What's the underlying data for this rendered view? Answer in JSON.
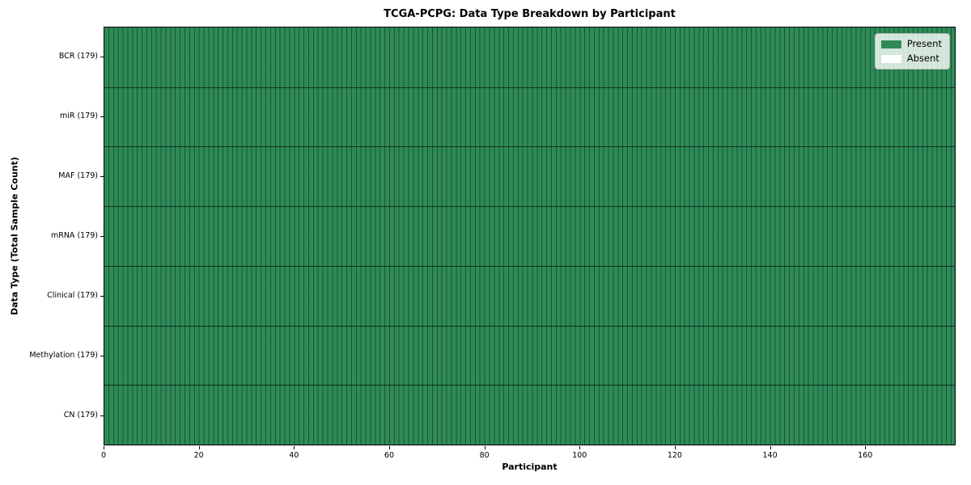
{
  "chart_data": {
    "type": "heatmap",
    "title": "TCGA-PCPG: Data Type Breakdown by Participant",
    "xlabel": "Participant",
    "ylabel": "Data Type (Total Sample Count)",
    "n_participants": 179,
    "xlim": [
      0,
      179
    ],
    "x_ticks": [
      0,
      20,
      40,
      60,
      80,
      100,
      120,
      140,
      160
    ],
    "categories": [
      "BCR (179)",
      "miR (179)",
      "MAF (179)",
      "mRNA (179)",
      "Clinical (179)",
      "Methylation (179)",
      "CN (179)"
    ],
    "series": [
      {
        "name": "BCR",
        "total_samples": 179,
        "present_count": 179,
        "absent_count": 0
      },
      {
        "name": "miR",
        "total_samples": 179,
        "present_count": 179,
        "absent_count": 0
      },
      {
        "name": "MAF",
        "total_samples": 179,
        "present_count": 179,
        "absent_count": 0
      },
      {
        "name": "mRNA",
        "total_samples": 179,
        "present_count": 179,
        "absent_count": 0
      },
      {
        "name": "Clinical",
        "total_samples": 179,
        "present_count": 179,
        "absent_count": 0
      },
      {
        "name": "Methylation",
        "total_samples": 179,
        "present_count": 179,
        "absent_count": 0
      },
      {
        "name": "CN",
        "total_samples": 179,
        "present_count": 179,
        "absent_count": 0
      }
    ],
    "legend": {
      "position": "upper right",
      "entries": [
        {
          "label": "Present",
          "color": "#2e8b57"
        },
        {
          "label": "Absent",
          "color": "#ffffff"
        }
      ]
    },
    "colors": {
      "present": "#2e8b57",
      "absent": "#ffffff",
      "column_line": "rgba(0,0,0,0.40)",
      "row_line": "rgba(0,0,0,0.62)",
      "spine": "#000000"
    },
    "grid": "per-participant column separators, per-datatype row separators"
  }
}
